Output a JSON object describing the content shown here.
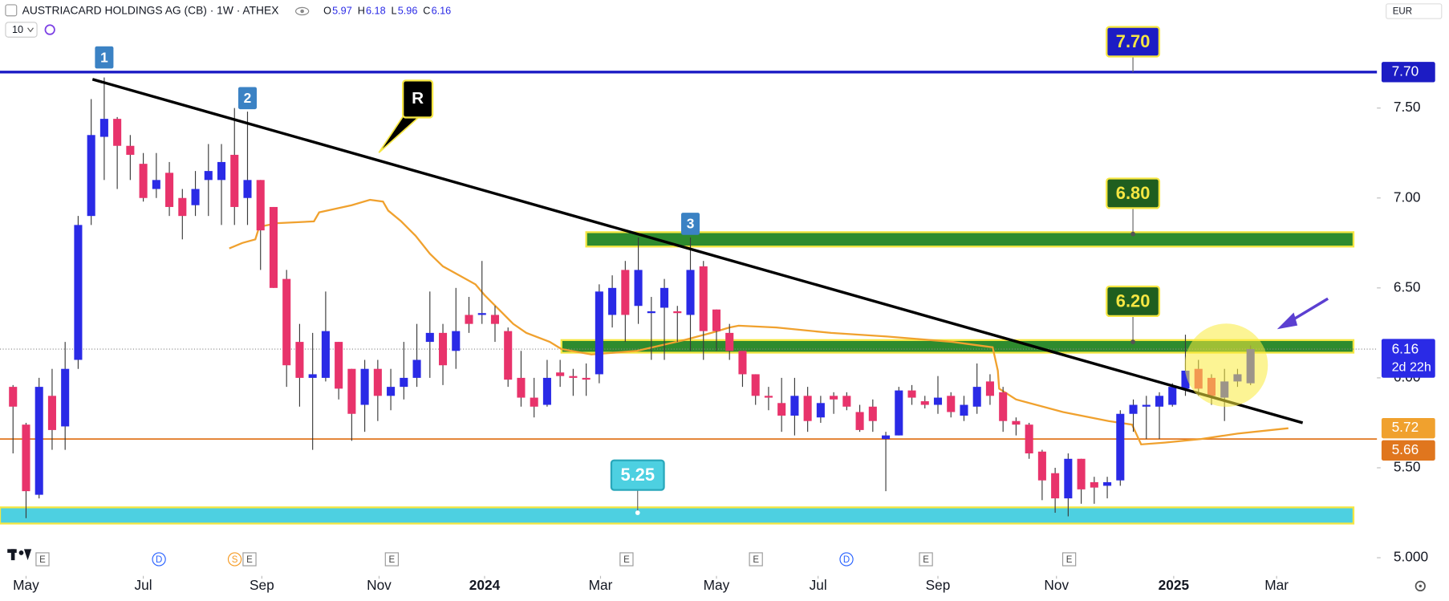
{
  "chart_data": {
    "type": "candlestick",
    "title": "AUSTRIACARD HOLDINGS AG (CB) · 1W · ATHEX",
    "ohlc_header": [
      {
        "key": "O",
        "value": "5.97"
      },
      {
        "key": "H",
        "value": "6.18"
      },
      {
        "key": "L",
        "value": "5.96"
      },
      {
        "key": "C",
        "value": "6.16"
      }
    ],
    "interval_badge": "10",
    "currency": "EUR",
    "countdown": "2d 22h",
    "up_color": "#2a2ae6",
    "down_color": "#e8336b",
    "open": [
      5.95,
      5.74,
      5.35,
      5.9,
      5.73,
      6.1,
      6.9,
      7.34,
      7.44,
      7.29,
      7.19,
      7.05,
      7.14,
      7.0,
      6.96,
      7.1,
      7.1,
      7.24,
      7.0,
      7.1,
      6.95,
      6.55,
      6.2,
      6.0,
      6.0,
      6.2,
      6.05,
      5.85,
      6.05,
      5.9,
      5.95,
      6.0,
      6.2,
      6.25,
      6.15,
      6.35,
      6.35,
      6.35,
      6.26,
      6.0,
      5.89,
      5.85,
      6.03,
      6.01,
      6.0,
      6.02,
      6.35,
      6.6,
      6.4,
      6.36,
      6.39,
      6.37,
      6.35,
      6.62,
      6.38,
      6.25,
      6.15,
      6.02,
      5.9,
      5.86,
      5.79,
      5.9,
      5.78,
      5.9,
      5.9,
      5.81,
      5.84,
      5.66,
      5.68,
      5.93,
      5.87,
      5.85,
      5.9,
      5.79,
      5.84,
      5.98,
      5.92,
      5.76,
      5.74,
      5.59,
      5.47,
      5.33,
      5.55,
      5.42,
      5.4,
      5.43,
      5.8,
      5.84,
      5.84,
      5.85,
      5.94,
      6.05,
      6.0,
      5.89,
      5.98,
      5.97
    ],
    "high": [
      5.96,
      5.75,
      6.0,
      6.05,
      6.2,
      6.9,
      7.55,
      7.67,
      7.45,
      7.35,
      7.25,
      7.25,
      7.2,
      7.05,
      7.15,
      7.3,
      7.3,
      7.5,
      7.48,
      7.1,
      6.95,
      6.6,
      6.3,
      6.25,
      6.48,
      6.2,
      6.05,
      6.1,
      6.1,
      6.05,
      6.2,
      6.3,
      6.48,
      6.3,
      6.5,
      6.45,
      6.65,
      6.4,
      6.28,
      6.15,
      6.0,
      6.1,
      6.1,
      6.05,
      6.08,
      6.52,
      6.57,
      6.65,
      6.78,
      6.45,
      6.55,
      6.4,
      6.78,
      6.65,
      6.38,
      6.3,
      6.15,
      6.02,
      5.95,
      6.0,
      6.0,
      5.95,
      5.9,
      5.92,
      5.92,
      5.85,
      5.88,
      5.7,
      5.95,
      5.96,
      5.9,
      6.01,
      5.92,
      5.9,
      6.08,
      6.02,
      5.95,
      5.78,
      5.75,
      5.6,
      5.5,
      5.58,
      5.55,
      5.45,
      5.45,
      5.82,
      5.88,
      5.9,
      5.92,
      5.97,
      6.24,
      6.1,
      6.02,
      6.05,
      6.05,
      6.18
    ],
    "low": [
      5.58,
      5.22,
      5.33,
      5.6,
      5.6,
      6.05,
      6.85,
      7.1,
      7.05,
      7.1,
      6.98,
      7.0,
      6.9,
      6.77,
      6.9,
      6.9,
      6.85,
      6.85,
      6.85,
      6.6,
      6.5,
      5.95,
      5.84,
      5.6,
      5.98,
      5.88,
      5.65,
      5.7,
      5.76,
      5.82,
      5.88,
      5.95,
      6.0,
      5.96,
      6.05,
      6.25,
      6.3,
      6.2,
      5.95,
      5.84,
      5.78,
      5.84,
      5.95,
      5.9,
      5.9,
      5.97,
      6.28,
      6.2,
      6.3,
      6.1,
      6.1,
      6.2,
      6.15,
      6.1,
      6.15,
      6.1,
      5.95,
      5.85,
      5.82,
      5.7,
      5.68,
      5.7,
      5.75,
      5.8,
      5.82,
      5.7,
      5.7,
      5.37,
      5.68,
      5.85,
      5.83,
      5.8,
      5.78,
      5.76,
      5.8,
      5.85,
      5.7,
      5.68,
      5.55,
      5.32,
      5.25,
      5.23,
      5.3,
      5.3,
      5.33,
      5.4,
      5.7,
      5.66,
      5.66,
      5.84,
      5.9,
      5.9,
      5.85,
      5.76,
      5.95,
      5.96
    ],
    "close": [
      5.84,
      5.37,
      5.95,
      5.71,
      6.05,
      6.85,
      7.35,
      7.44,
      7.29,
      7.24,
      7.0,
      7.1,
      6.95,
      6.9,
      7.05,
      7.15,
      7.2,
      6.95,
      7.1,
      6.82,
      6.5,
      6.07,
      6.0,
      6.02,
      6.26,
      5.94,
      5.8,
      6.05,
      5.9,
      5.95,
      6.0,
      6.1,
      6.25,
      6.07,
      6.26,
      6.3,
      6.36,
      6.3,
      5.99,
      5.89,
      5.84,
      6.0,
      6.01,
      6.0,
      5.99,
      6.48,
      6.5,
      6.35,
      6.6,
      6.37,
      6.5,
      6.36,
      6.6,
      6.26,
      6.26,
      6.15,
      6.02,
      5.9,
      5.89,
      5.79,
      5.9,
      5.76,
      5.86,
      5.88,
      5.84,
      5.71,
      5.76,
      5.68,
      5.93,
      5.89,
      5.85,
      5.89,
      5.81,
      5.85,
      5.95,
      5.9,
      5.76,
      5.74,
      5.58,
      5.43,
      5.33,
      5.55,
      5.38,
      5.39,
      5.42,
      5.8,
      5.85,
      5.85,
      5.9,
      5.95,
      6.04,
      5.94,
      5.9,
      5.98,
      6.02,
      6.16
    ],
    "moving_average": {
      "color": "#f0a12e",
      "x": [
        16.6,
        17.6,
        18.6,
        18.9,
        20.3,
        23.1,
        23.5,
        26.0,
        27.4,
        28.4,
        28.8,
        29.8,
        30.9,
        32.0,
        33.0,
        34.5,
        35.5,
        36.2,
        37.3,
        38.4,
        39.4,
        41.2,
        42.1,
        44.4,
        47.9,
        51.5,
        53.6,
        55.0,
        55.7,
        58.6,
        62.8,
        67.1,
        72.1,
        75.2,
        75.6,
        75.7,
        77.0,
        80.6,
        84.1,
        85.9,
        86.6,
        88.4,
        91.2,
        94.0,
        97.9
      ],
      "values": [
        6.72,
        6.75,
        6.77,
        6.84,
        6.86,
        6.87,
        6.92,
        6.96,
        6.99,
        6.98,
        6.93,
        6.87,
        6.79,
        6.69,
        6.62,
        6.56,
        6.52,
        6.46,
        6.38,
        6.3,
        6.25,
        6.2,
        6.16,
        6.13,
        6.15,
        6.21,
        6.25,
        6.28,
        6.29,
        6.28,
        6.25,
        6.23,
        6.2,
        6.17,
        6.04,
        5.94,
        5.88,
        5.81,
        5.76,
        5.74,
        5.63,
        5.64,
        5.66,
        5.69,
        5.72
      ]
    },
    "trendline": {
      "color": "#000000",
      "x": [
        6.1,
        99.0
      ],
      "values": [
        7.66,
        5.75
      ]
    },
    "resistance": {
      "value": 7.7,
      "label": "7.70",
      "color": "#1c1cc4"
    },
    "support": {
      "value": 5.66,
      "color": "#e0761e"
    },
    "zones": [
      {
        "label": "6.80",
        "value": 6.8,
        "high": 6.81,
        "low": 6.73,
        "start": 44.0,
        "end": 102.9,
        "color": "#2e8b2e",
        "label_bg": "#1f5e1f"
      },
      {
        "label": "6.20",
        "value": 6.2,
        "high": 6.21,
        "low": 6.14,
        "start": 42.1,
        "end": 102.9,
        "color": "#2e8b2e",
        "label_bg": "#1f5e1f"
      },
      {
        "label": "5.25",
        "value": 5.25,
        "high": 5.28,
        "low": 5.19,
        "start": -1,
        "end": 102.9,
        "color": "#4dd0e1",
        "label_bg": "#4dd0e1"
      }
    ],
    "markers": [
      "1",
      "2",
      "3",
      "R"
    ],
    "events": [
      "E",
      "D",
      "S",
      "E",
      "E",
      "E",
      "E",
      "D",
      "E",
      "E"
    ],
    "xlim": [
      -1,
      104.7
    ],
    "xticks": [
      {
        "value": 1.0,
        "label": "May"
      },
      {
        "value": 10.0,
        "label": "Jul"
      },
      {
        "value": 19.1,
        "label": "Sep"
      },
      {
        "value": 28.1,
        "label": "Nov"
      },
      {
        "value": 36.2,
        "label": "2024"
      },
      {
        "value": 45.1,
        "label": "Mar"
      },
      {
        "value": 54.0,
        "label": "May"
      },
      {
        "value": 61.8,
        "label": "Jul"
      },
      {
        "value": 71.0,
        "label": "Sep"
      },
      {
        "value": 80.1,
        "label": "Nov"
      },
      {
        "value": 89.1,
        "label": "2025"
      },
      {
        "value": 97.0,
        "label": "Mar"
      }
    ],
    "ylim": [
      4.94,
      8.1
    ],
    "yticks": [
      {
        "value": 5,
        "label": "5.000"
      },
      {
        "value": 5.5,
        "label": "5.50"
      },
      {
        "value": 6,
        "label": "6.00"
      },
      {
        "value": 6.5,
        "label": "6.50"
      },
      {
        "value": 7,
        "label": "7.00"
      },
      {
        "value": 7.5,
        "label": "7.50"
      }
    ]
  }
}
